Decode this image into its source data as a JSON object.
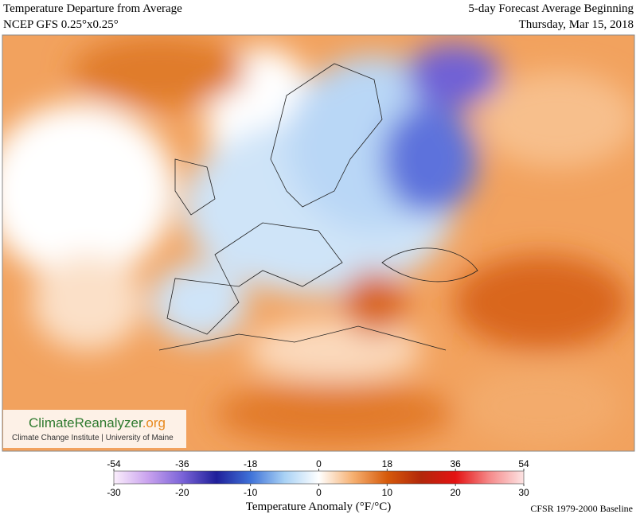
{
  "header": {
    "left_title": "Temperature Departure from Average",
    "left_subtitle": "NCEP GFS 0.25°x0.25°",
    "right_title": "5-day Forecast Average Beginning",
    "right_date": "Thursday, Mar 15, 2018"
  },
  "logo": {
    "name": "ClimateReanalyzer",
    "suffix": ".org",
    "subtitle": "Climate Change Institute | University of Maine"
  },
  "colorbar": {
    "label": "Temperature Anomaly (°F/°C)",
    "f_lim": [
      -54,
      54
    ],
    "f_ticks": [
      -54,
      -36,
      -18,
      0,
      18,
      36,
      54
    ],
    "c_lim": [
      -30,
      30
    ],
    "c_ticks": [
      -30,
      -20,
      -10,
      0,
      10,
      20,
      30
    ],
    "colors": [
      "#fbeefc",
      "#c9a2ee",
      "#7b64d8",
      "#1f1f9a",
      "#3f72d8",
      "#a9d2f5",
      "#ffffff",
      "#f6b071",
      "#d65a0b",
      "#b2270a",
      "#e41212",
      "#f58a8a",
      "#fde3e3"
    ]
  },
  "baseline": "CFSR 1979-2000 Baseline"
}
